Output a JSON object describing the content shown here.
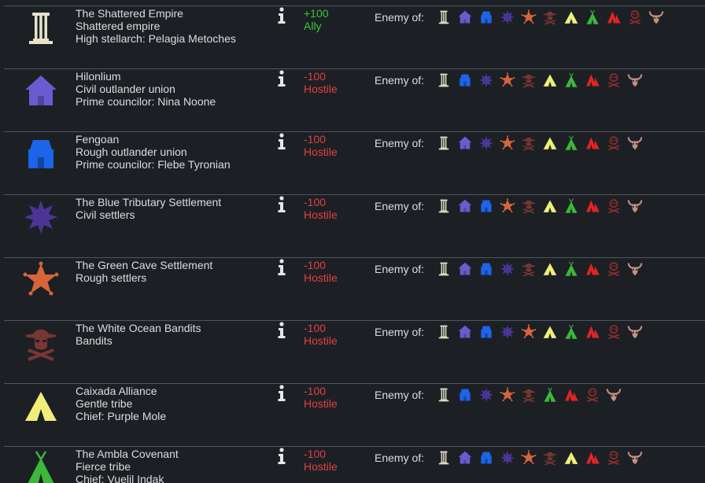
{
  "labels": {
    "enemy_of": "Enemy of:"
  },
  "colors": {
    "empire": "#e6e3c8",
    "hilonlium": "#6b5bd0",
    "fengoan": "#1c64e8",
    "blue_tributary": "#4a3596",
    "green_cave": "#d8643a",
    "white_ocean": "#7a3632",
    "caixada": "#f0ee7a",
    "ambla": "#3cb83a",
    "red_tribe": "#e02424",
    "pirates": "#8e2d2d",
    "hoof": "#c49080",
    "ally": "#36c936",
    "hostile": "#e04040"
  },
  "factions": [
    {
      "key": "empire",
      "icon": "empire-icon",
      "color": "#e6e3c8",
      "lines": [
        "The Shattered Empire",
        "Shattered empire",
        "High stellarch: Pelagia Metoches"
      ],
      "goodwill": "+100",
      "relation": "Ally",
      "status": "ally",
      "enemies": [
        "empire-pillar-icon",
        "hilonlium-house-icon",
        "fengoan-hut-icon",
        "blue-star-icon",
        "orange-star-icon",
        "bandit-icon",
        "yellow-tent-icon",
        "green-tent-icon",
        "red-tent-icon",
        "pirate-skull-icon",
        "horned-skull-icon"
      ]
    },
    {
      "key": "hilonlium",
      "icon": "hilonlium-house-icon",
      "color": "#6b5bd0",
      "lines": [
        "Hilonlium",
        "Civil outlander union",
        "Prime councilor: Nina Noone"
      ],
      "goodwill": "-100",
      "relation": "Hostile",
      "status": "hostile",
      "enemies": [
        "empire-pillar-icon",
        "fengoan-hut-icon",
        "blue-star-icon",
        "orange-star-icon",
        "bandit-icon",
        "yellow-tent-icon",
        "green-tent-icon",
        "red-tent-icon",
        "pirate-skull-icon",
        "horned-skull-icon"
      ]
    },
    {
      "key": "fengoan",
      "icon": "fengoan-hut-icon",
      "color": "#1c64e8",
      "lines": [
        "Fengoan",
        "Rough outlander union",
        "Prime councilor: Flebe Tyronian"
      ],
      "goodwill": "-100",
      "relation": "Hostile",
      "status": "hostile",
      "enemies": [
        "empire-pillar-icon",
        "hilonlium-house-icon",
        "blue-star-icon",
        "orange-star-icon",
        "bandit-icon",
        "yellow-tent-icon",
        "green-tent-icon",
        "red-tent-icon",
        "pirate-skull-icon",
        "horned-skull-icon"
      ]
    },
    {
      "key": "blue_tributary",
      "icon": "blue-star-icon",
      "color": "#4a3596",
      "lines": [
        "The Blue Tributary Settlement",
        "Civil settlers"
      ],
      "goodwill": "-100",
      "relation": "Hostile",
      "status": "hostile",
      "enemies": [
        "empire-pillar-icon",
        "hilonlium-house-icon",
        "fengoan-hut-icon",
        "orange-star-icon",
        "bandit-icon",
        "yellow-tent-icon",
        "green-tent-icon",
        "red-tent-icon",
        "pirate-skull-icon",
        "horned-skull-icon"
      ]
    },
    {
      "key": "green_cave",
      "icon": "orange-star-icon",
      "color": "#d8643a",
      "lines": [
        "The Green Cave Settlement",
        "Rough settlers"
      ],
      "goodwill": "-100",
      "relation": "Hostile",
      "status": "hostile",
      "enemies": [
        "empire-pillar-icon",
        "hilonlium-house-icon",
        "fengoan-hut-icon",
        "blue-star-icon",
        "bandit-icon",
        "yellow-tent-icon",
        "green-tent-icon",
        "red-tent-icon",
        "pirate-skull-icon",
        "horned-skull-icon"
      ]
    },
    {
      "key": "white_ocean",
      "icon": "bandit-icon",
      "color": "#7a3632",
      "lines": [
        "The White Ocean Bandits",
        "Bandits"
      ],
      "goodwill": "-100",
      "relation": "Hostile",
      "status": "hostile",
      "enemies": [
        "empire-pillar-icon",
        "hilonlium-house-icon",
        "fengoan-hut-icon",
        "blue-star-icon",
        "orange-star-icon",
        "yellow-tent-icon",
        "green-tent-icon",
        "red-tent-icon",
        "pirate-skull-icon",
        "horned-skull-icon"
      ]
    },
    {
      "key": "caixada",
      "icon": "yellow-tent-icon",
      "color": "#f0ee7a",
      "lines": [
        "Caixada Alliance",
        "Gentle tribe",
        "Chief: Purple Mole"
      ],
      "goodwill": "-100",
      "relation": "Hostile",
      "status": "hostile",
      "enemies": [
        "empire-pillar-icon",
        "fengoan-hut-icon",
        "blue-star-icon",
        "orange-star-icon",
        "bandit-icon",
        "green-tent-icon",
        "red-tent-icon",
        "pirate-skull-icon",
        "horned-skull-icon"
      ]
    },
    {
      "key": "ambla",
      "icon": "green-tent-icon",
      "color": "#3cb83a",
      "lines": [
        "The Ambla Covenant",
        "Fierce tribe",
        "Chief: Vuelil Indak"
      ],
      "goodwill": "-100",
      "relation": "Hostile",
      "status": "hostile",
      "enemies": [
        "empire-pillar-icon",
        "hilonlium-house-icon",
        "fengoan-hut-icon",
        "blue-star-icon",
        "orange-star-icon",
        "bandit-icon",
        "yellow-tent-icon",
        "red-tent-icon",
        "pirate-skull-icon",
        "horned-skull-icon"
      ]
    }
  ]
}
